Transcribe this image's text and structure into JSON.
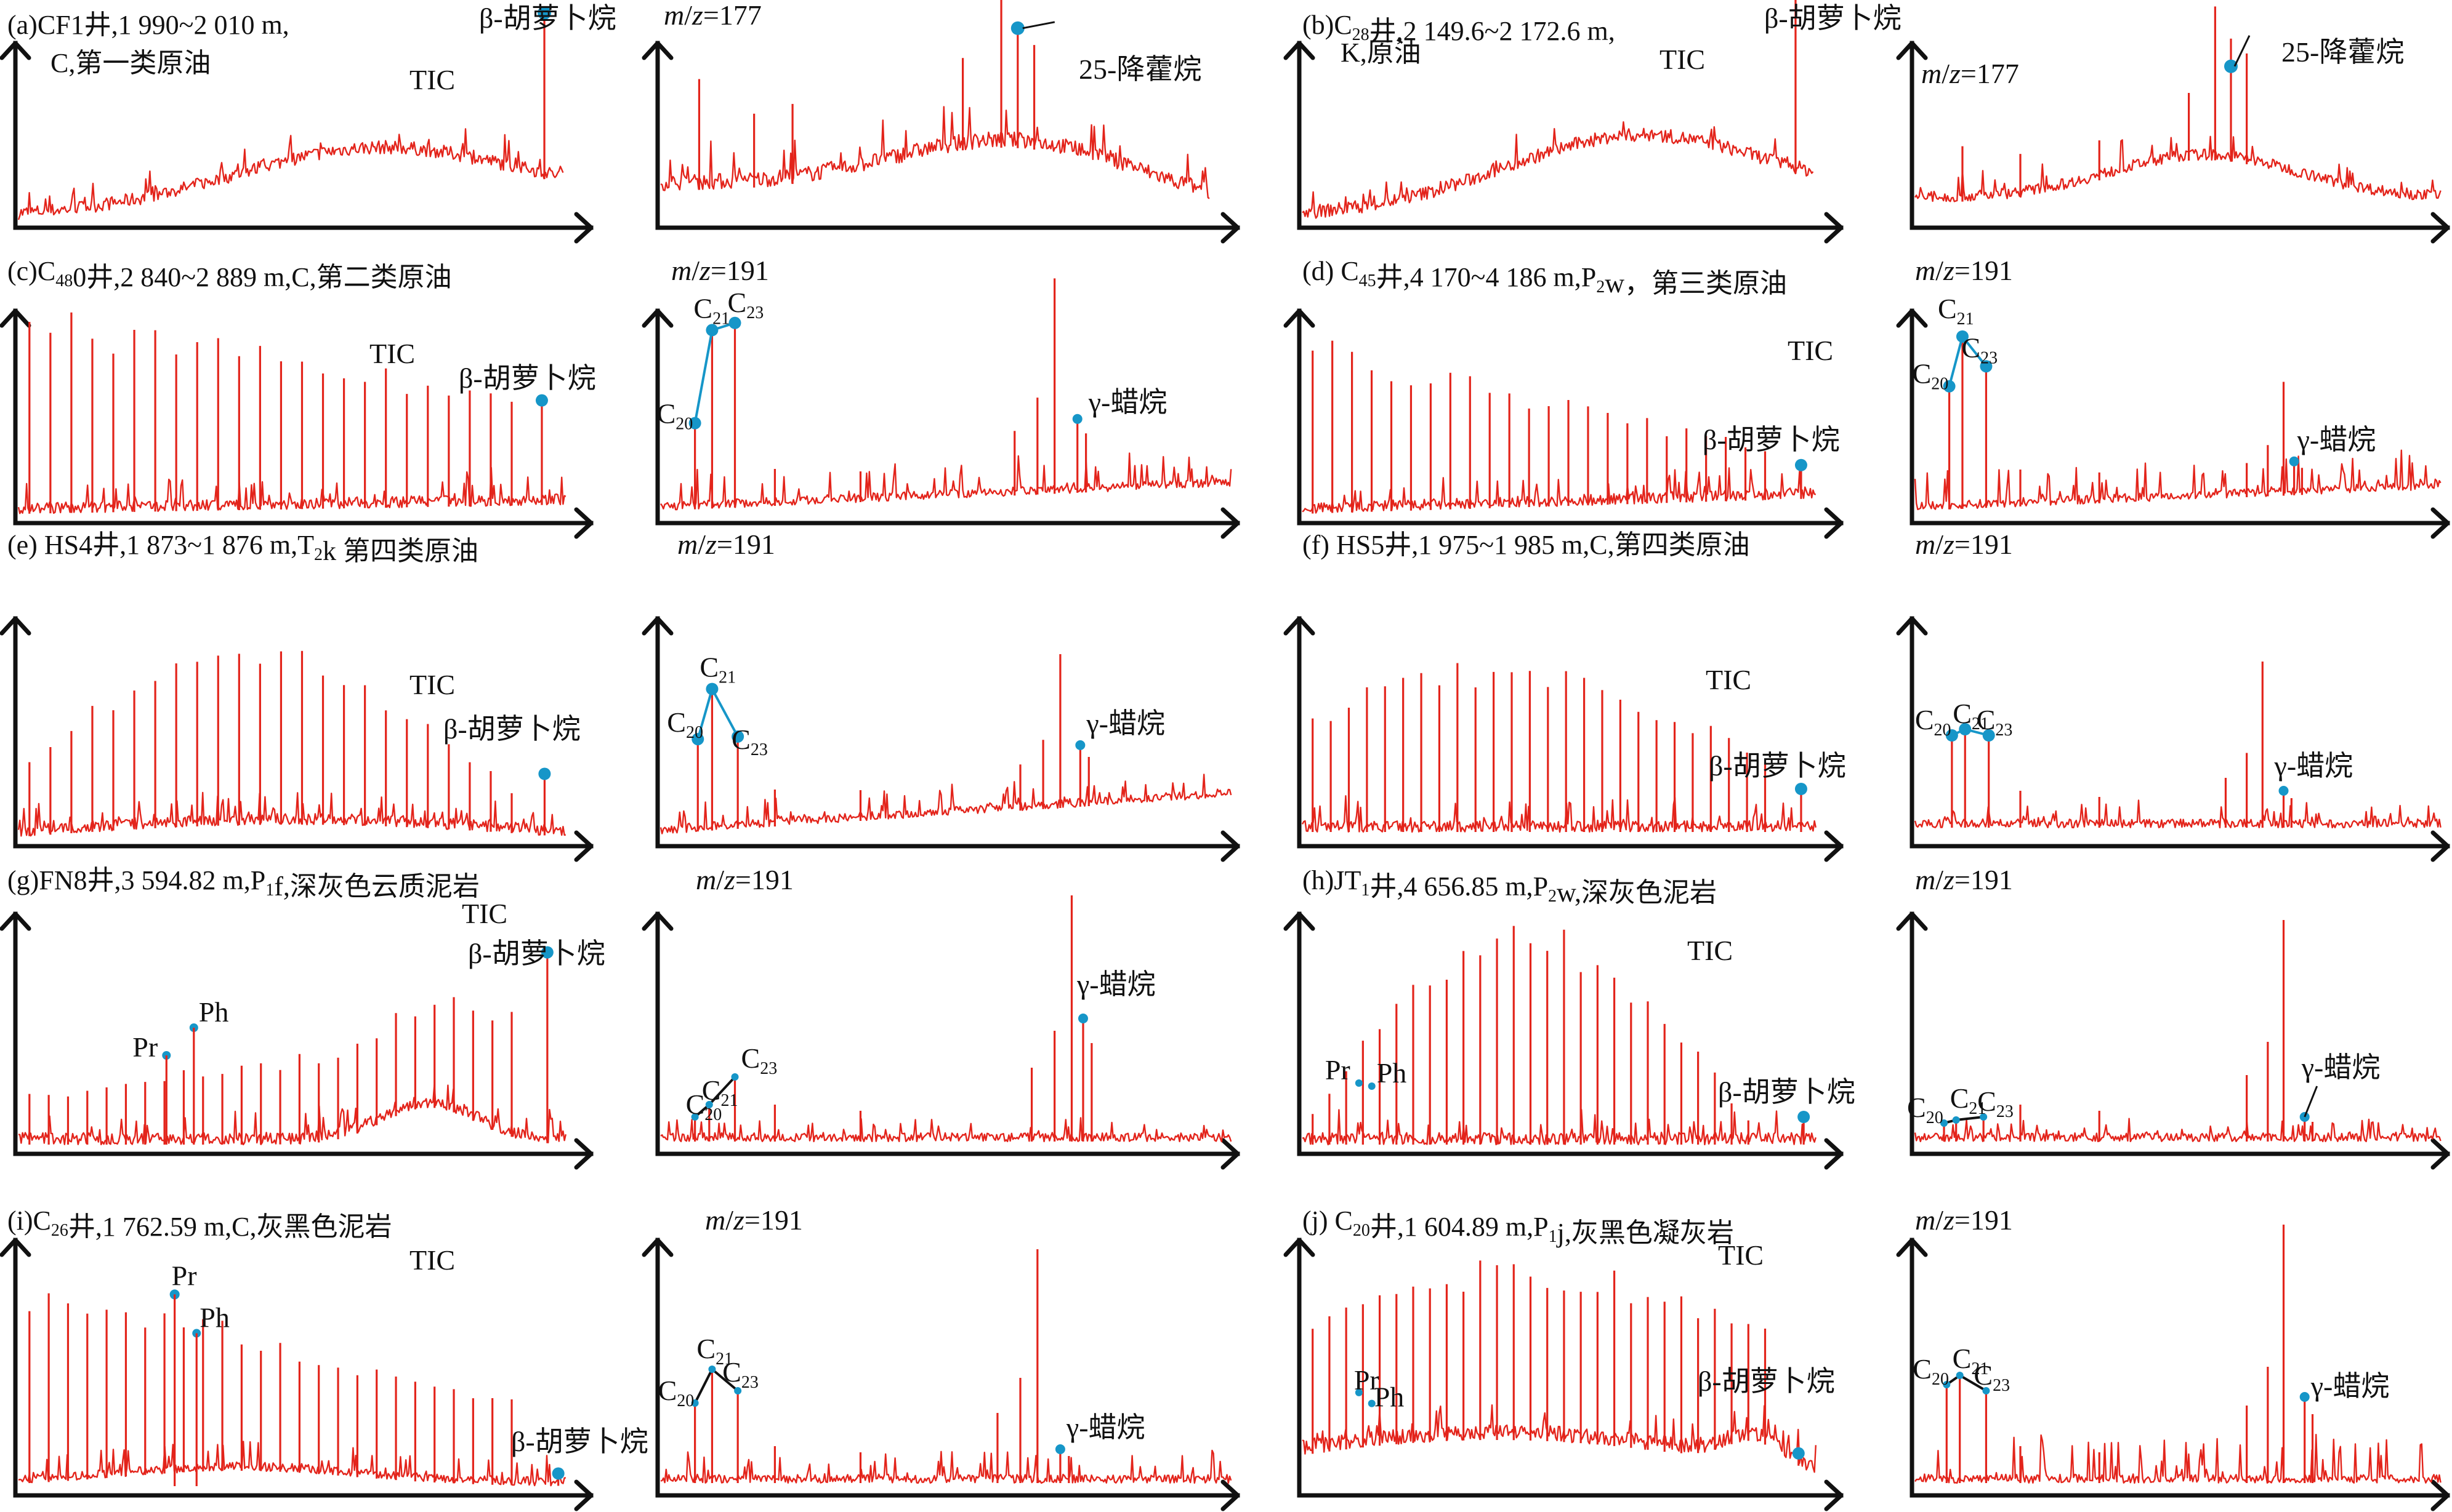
{
  "figure": {
    "panels": [
      {
        "id": "a",
        "title": "(a)CF1井,1 990~2 010 m,",
        "title2": "C,第一类原油",
        "tic": "TIC",
        "beta": "β-胡萝卜烷",
        "mz": "m/z=177",
        "norhop": "25-降藿烷"
      },
      {
        "id": "b",
        "title": "(b)C28井,2 149.6~2 172.6 m,",
        "title2": "K,原油",
        "tic": "TIC",
        "beta": "β-胡萝卜烷",
        "mz": "m/z=177",
        "norhop": "25-降藿烷"
      },
      {
        "id": "c",
        "title": "(c)C480井,2 840~2 889 m,C,第二类原油",
        "tic": "TIC",
        "beta": "β-胡萝卜烷",
        "mz": "m/z=191",
        "gam": "γ-蜡烷"
      },
      {
        "id": "d",
        "title": "(d) C45井,4 170~4 186 m,P2w，第三类原油",
        "tic": "TIC",
        "beta": "β-胡萝卜烷",
        "mz": "m/z=191",
        "gam": "γ-蜡烷"
      },
      {
        "id": "e",
        "title": "(e) HS4井,1 873~1 876 m,T2k 第四类原油",
        "tic": "TIC",
        "beta": "β-胡萝卜烷",
        "mz": "m/z=191",
        "gam": "γ-蜡烷"
      },
      {
        "id": "f",
        "title": "(f) HS5井,1 975~1 985 m,C,第四类原油",
        "tic": "TIC",
        "beta": "β-胡萝卜烷",
        "mz": "m/z=191",
        "gam": "γ-蜡烷"
      },
      {
        "id": "g",
        "title": "(g)FN8井,3 594.82 m,P1f,深灰色云质泥岩",
        "tic": "TIC",
        "beta": "β-胡萝卜烷",
        "pr": "Pr",
        "ph": "Ph",
        "mz": "m/z=191",
        "gam": "γ-蜡烷"
      },
      {
        "id": "h",
        "title": "(h)JT1井,4 656.85 m,P2w,深灰色泥岩",
        "tic": "TIC",
        "beta": "β-胡萝卜烷",
        "pr": "Pr",
        "ph": "Ph",
        "mz": "m/z=191",
        "gam": "γ-蜡烷"
      },
      {
        "id": "i",
        "title": "(i)C26井,1 762.59 m,C,灰黑色泥岩",
        "tic": "TIC",
        "beta": "β-胡萝卜烷",
        "pr": "Pr",
        "ph": "Ph",
        "mz": "m/z=191",
        "gam": "γ-蜡烷"
      },
      {
        "id": "j",
        "title": "(j) C20井,1 604.89 m,P1j,灰黑色凝灰岩",
        "tic": "TIC",
        "beta": "β-胡萝卜烷",
        "pr": "Pr",
        "ph": "Ph",
        "mz": "m/z=191",
        "gam": "γ-蜡烷"
      }
    ]
  },
  "chart_data": {
    "type": "line",
    "description_of_marks": "gas chromatograms (TIC) and mass chromatograms (m/z=177, m/z=191) of crude oils and source rocks",
    "hopane_labels": [
      "C20",
      "C21",
      "C23"
    ],
    "colors": {
      "trace": "#e3241b",
      "marker": "#1696c8",
      "axis": "#111111"
    }
  }
}
